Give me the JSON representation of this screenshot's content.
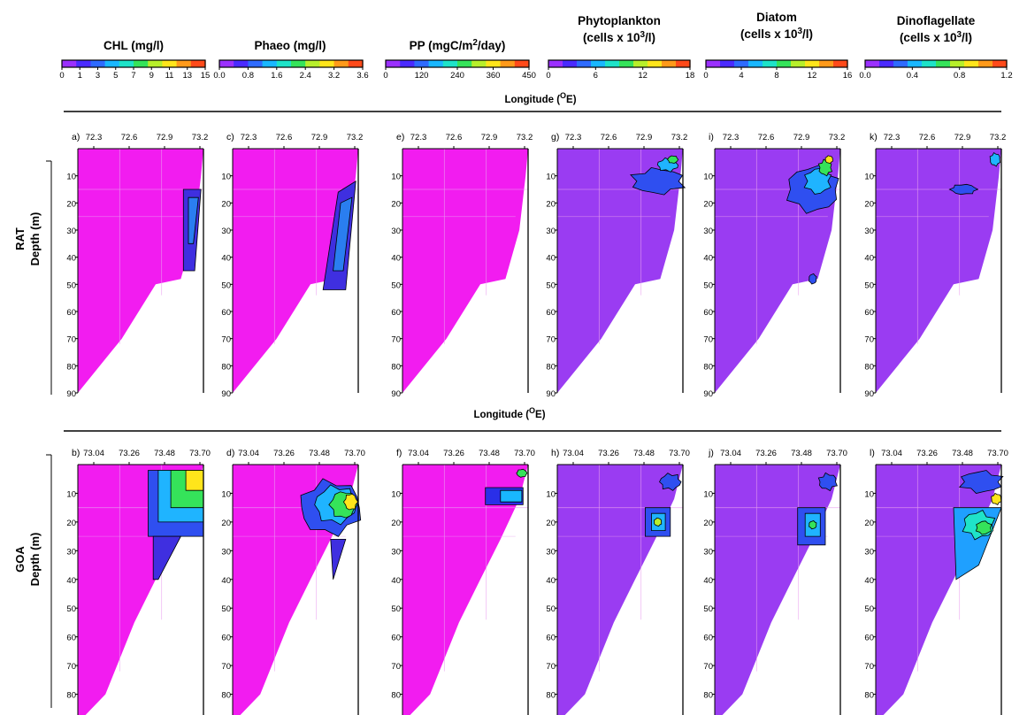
{
  "colorbars": [
    {
      "title": "CHL (mg/l)",
      "ticks": [
        "0",
        "1",
        "3",
        "5",
        "7",
        "9",
        "11",
        "13",
        "15"
      ]
    },
    {
      "title": "Phaeo (mg/l)",
      "ticks": [
        "0.0",
        "0.8",
        "1.6",
        "2.4",
        "3.2",
        "3.6"
      ]
    },
    {
      "title_parts": [
        "PP (mgC/m",
        "2",
        "/day)"
      ],
      "ticks": [
        "0",
        "120",
        "240",
        "360",
        "450"
      ]
    },
    {
      "title_lines": [
        "Phytoplankton",
        "(cells x 10",
        "3",
        "/l)"
      ],
      "ticks": [
        "0",
        "6",
        "12",
        "18"
      ]
    },
    {
      "title_lines": [
        "Diatom",
        "(cells x 10",
        "3",
        "/l)"
      ],
      "ticks": [
        "0",
        "4",
        "8",
        "12",
        "16"
      ]
    },
    {
      "title_lines": [
        "Dinoflagellate",
        "(cells x 10",
        "3",
        "/l)"
      ],
      "ticks": [
        "0.0",
        "0.4",
        "0.8",
        "1.2"
      ]
    }
  ],
  "longitude_label": "Longitude (",
  "longitude_sup": "O",
  "longitude_unit": "E)",
  "rows": [
    {
      "name": "RAT",
      "ylabel": "Depth (m)",
      "panel_letters": [
        "a)",
        "c)",
        "e)",
        "g)",
        "i)",
        "k)"
      ],
      "xticks": [
        "72.3",
        "72.6",
        "72.9",
        "73.2"
      ]
    },
    {
      "name": "GOA",
      "ylabel": "Depth (m)",
      "panel_letters": [
        "b)",
        "d)",
        "f)",
        "h)",
        "j)",
        "l)"
      ],
      "xticks": [
        "73.04",
        "73.26",
        "73.48",
        "73.70"
      ]
    }
  ],
  "depth_ticks": [
    "10",
    "20",
    "30",
    "40",
    "50",
    "60",
    "70",
    "80",
    "90"
  ],
  "colors": {
    "background_magenta": "#f21cf0",
    "background_violet": "#9a3cf2",
    "line": "#000000",
    "gridline": "#e9a0f0"
  },
  "chart_data": [
    {
      "panel": "a",
      "type": "heatmap",
      "variable": "CHL (mg/l)",
      "region": "RAT",
      "x": [
        72.3,
        72.6,
        72.9,
        73.2
      ],
      "ylim": [
        0,
        90
      ],
      "background_value": 0,
      "peak_value": 3,
      "peak_depth_range": [
        15,
        45
      ],
      "peak_longitude": 73.1
    },
    {
      "panel": "b",
      "type": "heatmap",
      "variable": "CHL (mg/l)",
      "region": "GOA",
      "x": [
        73.04,
        73.26,
        73.48,
        73.7
      ],
      "ylim": [
        0,
        90
      ],
      "background_value": 0,
      "peak_value": 15,
      "peak_depth_range": [
        0,
        25
      ],
      "peak_longitude": 73.65
    },
    {
      "panel": "c",
      "type": "heatmap",
      "variable": "Phaeo (mg/l)",
      "region": "RAT",
      "x": [
        72.3,
        72.6,
        72.9,
        73.2
      ],
      "ylim": [
        0,
        90
      ],
      "background_value": 0.0,
      "peak_value": 0.8,
      "peak_depth_range": [
        15,
        50
      ],
      "peak_longitude": 73.1
    },
    {
      "panel": "d",
      "type": "heatmap",
      "variable": "Phaeo (mg/l)",
      "region": "GOA",
      "x": [
        73.04,
        73.26,
        73.48,
        73.7
      ],
      "ylim": [
        0,
        90
      ],
      "background_value": 0.0,
      "peak_value": 2.4,
      "peak_depth_range": [
        5,
        40
      ],
      "peak_longitude": 73.6
    },
    {
      "panel": "e",
      "type": "heatmap",
      "variable": "PP (mgC/m2/day)",
      "region": "RAT",
      "x": [
        72.3,
        72.6,
        72.9,
        73.2
      ],
      "ylim": [
        0,
        90
      ],
      "background_value": 0,
      "peak_value": 0
    },
    {
      "panel": "f",
      "type": "heatmap",
      "variable": "PP (mgC/m2/day)",
      "region": "GOA",
      "x": [
        73.04,
        73.26,
        73.48,
        73.7
      ],
      "ylim": [
        0,
        90
      ],
      "background_value": 0,
      "peak_value": 120,
      "peak_depth_range": [
        3,
        15
      ],
      "peak_longitude": 73.6
    },
    {
      "panel": "g",
      "type": "heatmap",
      "variable": "Phytoplankton (cells x 10^3/l)",
      "region": "RAT",
      "x": [
        72.3,
        72.6,
        72.9,
        73.2
      ],
      "ylim": [
        0,
        90
      ],
      "background_value": 0,
      "peak_value": 12,
      "peak_depth_range": [
        0,
        20
      ],
      "peak_longitude": 73.15
    },
    {
      "panel": "h",
      "type": "heatmap",
      "variable": "Phytoplankton (cells x 10^3/l)",
      "region": "GOA",
      "x": [
        73.04,
        73.26,
        73.48,
        73.7
      ],
      "ylim": [
        0,
        90
      ],
      "background_value": 0,
      "peak_value": 12,
      "peak_depth_range": [
        15,
        25
      ],
      "peak_longitude": 73.6
    },
    {
      "panel": "i",
      "type": "heatmap",
      "variable": "Diatom (cells x 10^3/l)",
      "region": "RAT",
      "x": [
        72.3,
        72.6,
        72.9,
        73.2
      ],
      "ylim": [
        0,
        90
      ],
      "background_value": 0,
      "peak_value": 12,
      "peak_depth_range": [
        0,
        22
      ],
      "peak_longitude": 73.1
    },
    {
      "panel": "j",
      "type": "heatmap",
      "variable": "Diatom (cells x 10^3/l)",
      "region": "GOA",
      "x": [
        73.04,
        73.26,
        73.48,
        73.7
      ],
      "ylim": [
        0,
        90
      ],
      "background_value": 0,
      "peak_value": 12,
      "peak_depth_range": [
        15,
        28
      ],
      "peak_longitude": 73.6
    },
    {
      "panel": "k",
      "type": "heatmap",
      "variable": "Dinoflagellate (cells x 10^3/l)",
      "region": "RAT",
      "x": [
        72.3,
        72.6,
        72.9,
        73.2
      ],
      "ylim": [
        0,
        90
      ],
      "background_value": 0.0,
      "peak_value": 0.4,
      "peak_depth_range": [
        0,
        18
      ],
      "peak_longitude": 73.15
    },
    {
      "panel": "l",
      "type": "heatmap",
      "variable": "Dinoflagellate (cells x 10^3/l)",
      "region": "GOA",
      "x": [
        73.04,
        73.26,
        73.48,
        73.7
      ],
      "ylim": [
        0,
        90
      ],
      "background_value": 0.0,
      "peak_value": 1.2,
      "peak_depth_range": [
        0,
        35
      ],
      "peak_longitude": 73.62
    }
  ]
}
